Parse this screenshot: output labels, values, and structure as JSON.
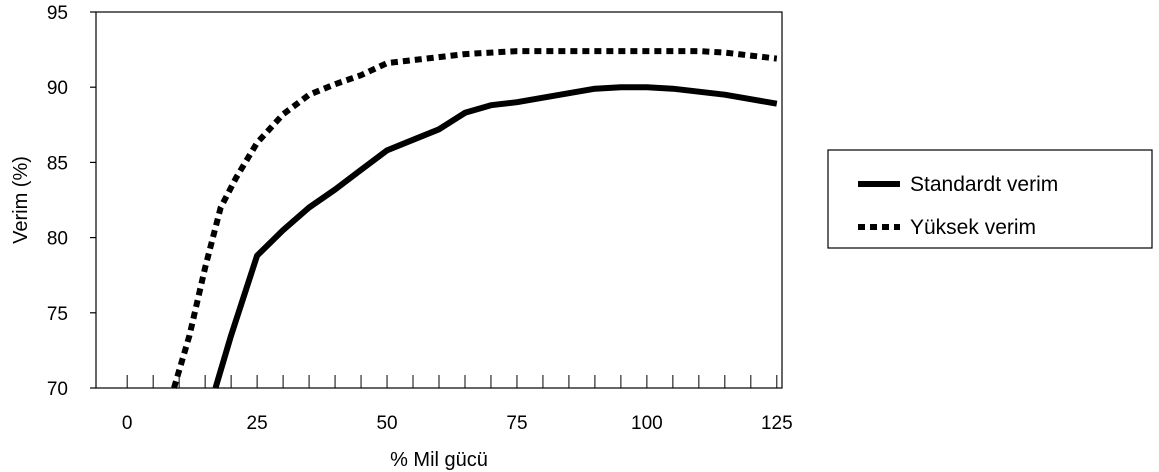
{
  "chart_data": {
    "type": "line",
    "title": "",
    "xlabel": "% Mil gücü",
    "ylabel": "Verim (%)",
    "xlim": [
      -6,
      126
    ],
    "ylim": [
      70,
      95
    ],
    "x_ticks": [
      0,
      25,
      50,
      75,
      100,
      125
    ],
    "y_ticks": [
      70,
      75,
      80,
      85,
      90,
      95
    ],
    "grid": false,
    "legend_position": "right",
    "series": [
      {
        "name": "Standardt verim",
        "style": "solid",
        "color": "#000000",
        "x": [
          17,
          20,
          25,
          30,
          35,
          40,
          45,
          50,
          55,
          60,
          65,
          70,
          75,
          80,
          85,
          90,
          95,
          100,
          105,
          110,
          115,
          120,
          125
        ],
        "y": [
          70,
          73.5,
          78.8,
          80.5,
          82,
          83.2,
          84.5,
          85.8,
          86.5,
          87.2,
          88.3,
          88.8,
          89,
          89.3,
          89.6,
          89.9,
          90,
          90,
          89.9,
          89.7,
          89.5,
          89.2,
          88.9
        ]
      },
      {
        "name": "Yüksek verim",
        "style": "dashed",
        "color": "#000000",
        "x": [
          9,
          12,
          15,
          18,
          21,
          25,
          30,
          35,
          40,
          45,
          50,
          55,
          60,
          65,
          70,
          75,
          80,
          85,
          90,
          95,
          100,
          105,
          110,
          115,
          120,
          125
        ],
        "y": [
          70,
          73.5,
          78,
          82,
          84,
          86.3,
          88.2,
          89.5,
          90.2,
          90.8,
          91.6,
          91.8,
          92,
          92.2,
          92.3,
          92.4,
          92.4,
          92.4,
          92.4,
          92.4,
          92.4,
          92.4,
          92.4,
          92.3,
          92.1,
          91.9
        ]
      }
    ]
  }
}
